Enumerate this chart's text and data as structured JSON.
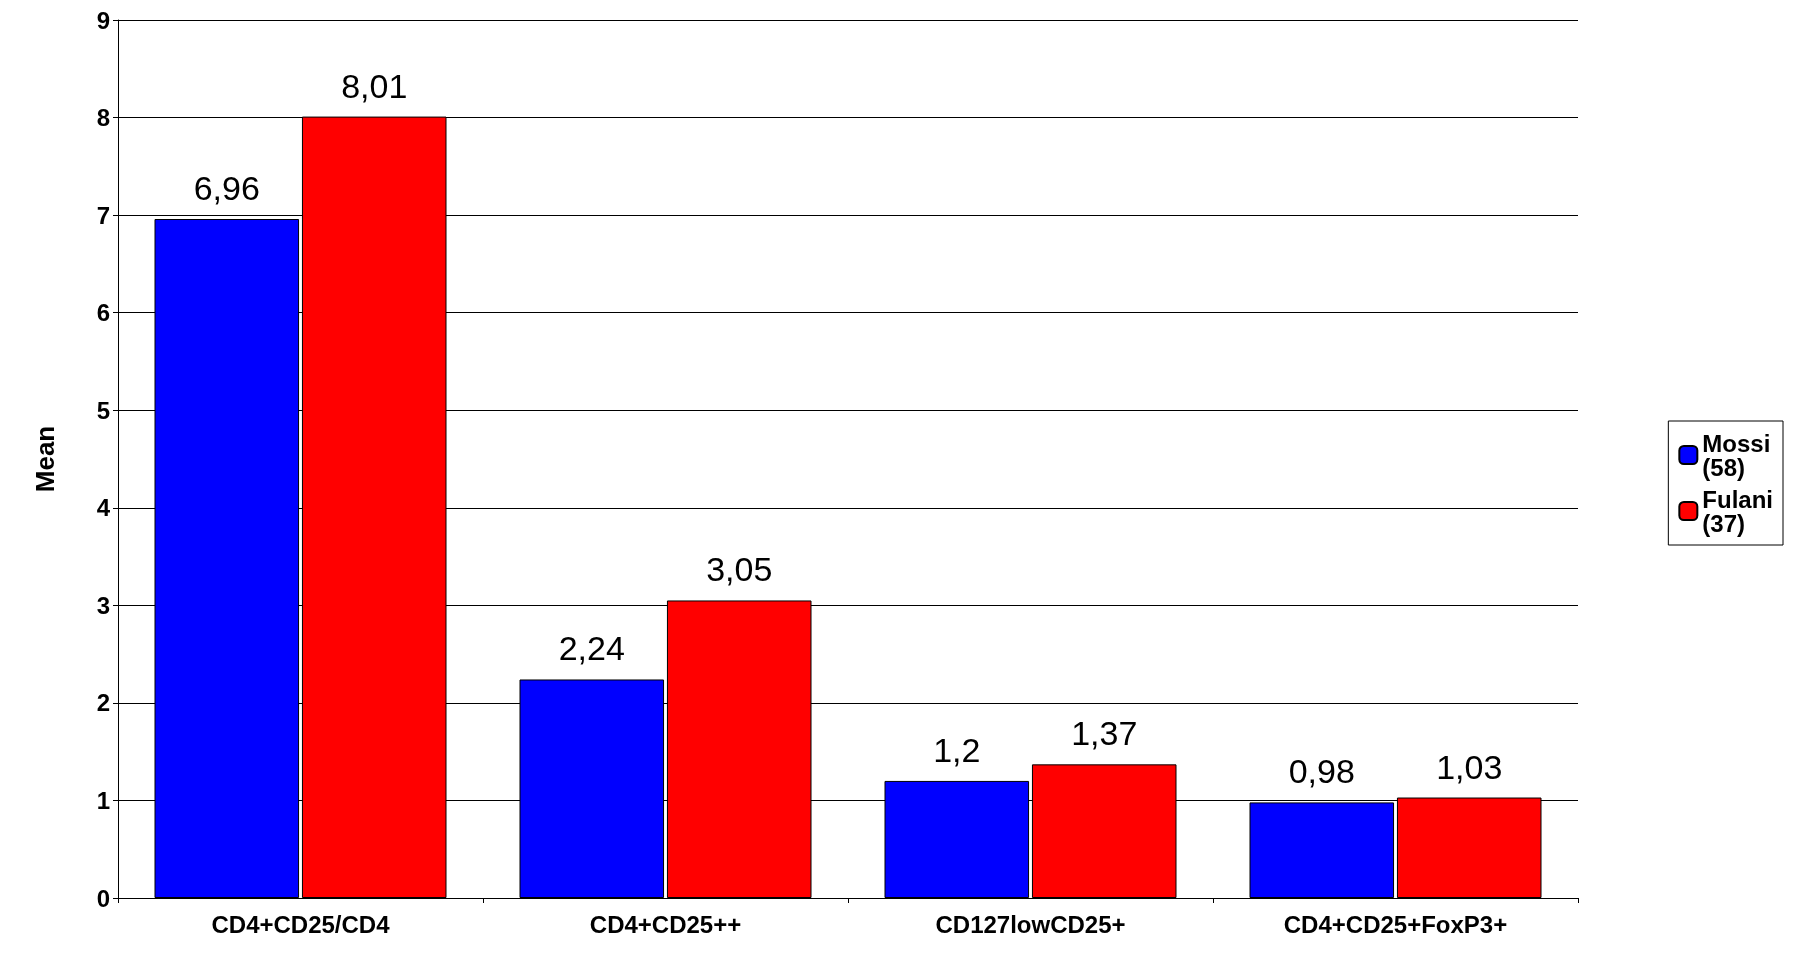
{
  "chart_data": {
    "type": "bar",
    "ylabel": "Mean",
    "categories": [
      "CD4+CD25/CD4",
      "CD4+CD25++",
      "CD127lowCD25+",
      "CD4+CD25+FoxP3+"
    ],
    "series": [
      {
        "name": "Mossi (58)",
        "color": "#0000ff",
        "values": [
          6.96,
          2.24,
          1.2,
          0.98
        ],
        "value_labels": [
          "6,96",
          "2,24",
          "1,2",
          "0,98"
        ]
      },
      {
        "name": "Fulani (37)",
        "color": "#ff0000",
        "values": [
          8.01,
          3.05,
          1.37,
          1.03
        ],
        "value_labels": [
          "8,01",
          "3,05",
          "1,37",
          "1,03"
        ]
      }
    ],
    "ylim": [
      0,
      9
    ],
    "yticks": [
      0,
      1,
      2,
      3,
      4,
      5,
      6,
      7,
      8,
      9
    ],
    "grid": "y",
    "legend": "right"
  }
}
